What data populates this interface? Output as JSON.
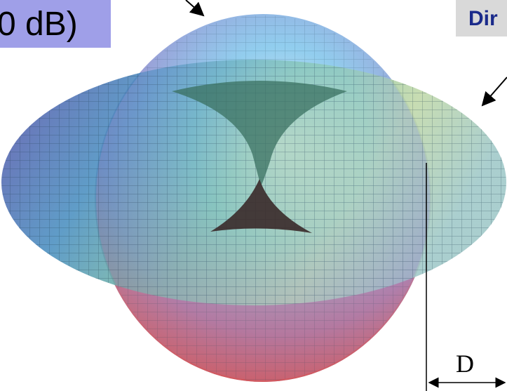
{
  "labels": {
    "isotropic": "0 dB)",
    "directional": "Dir",
    "dimension": "D"
  }
}
